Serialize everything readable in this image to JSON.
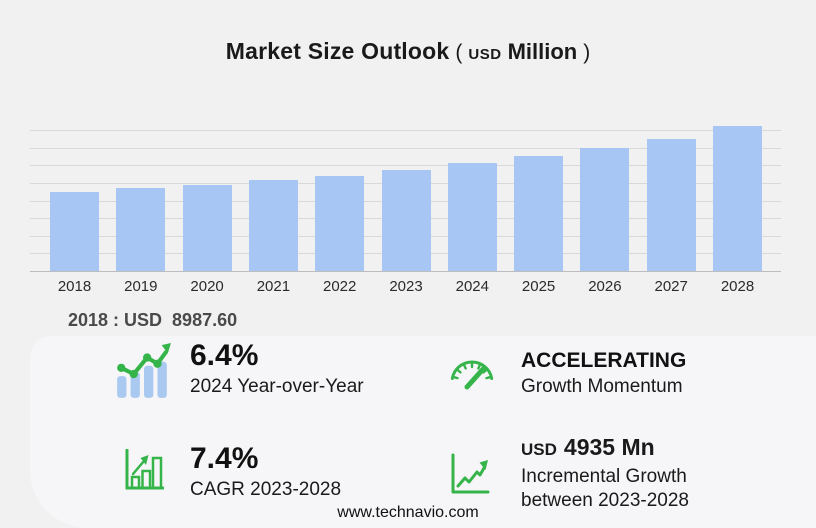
{
  "title": {
    "main": "Market Size Outlook",
    "open_paren": "(",
    "currency": "USD",
    "unit": "Million",
    "close_paren": ")"
  },
  "chart_data": {
    "type": "bar",
    "title": "Market Size Outlook (USD Million)",
    "categories": [
      "2018",
      "2019",
      "2020",
      "2021",
      "2022",
      "2023",
      "2024",
      "2025",
      "2026",
      "2027",
      "2028"
    ],
    "values": [
      8987.6,
      9390,
      9800,
      10300,
      10830,
      11510,
      12250,
      13090,
      13950,
      14990,
      16445
    ],
    "xlabel": "",
    "ylabel": "USD Million",
    "ylim": [
      0,
      16000
    ],
    "gridline_interval": 2000,
    "grid": true,
    "legend": false,
    "bar_color": "#a7c6f3"
  },
  "annotation": {
    "base_value": "2018 : USD  8987.60"
  },
  "stats": {
    "yoy": {
      "icon": "bar-chart-trend-icon",
      "value": "6.4%",
      "label": "2024 Year-over-Year"
    },
    "momentum": {
      "icon": "speedometer-icon",
      "value": "ACCELERATING",
      "label": "Growth Momentum"
    },
    "cagr": {
      "icon": "growth-bars-icon",
      "value": "7.4%",
      "label": "CAGR 2023-2028"
    },
    "incremental": {
      "icon": "trend-axes-icon",
      "currency": "USD",
      "value": "4935 Mn",
      "label_line1": "Incremental Growth",
      "label_line2": "between 2023-2028"
    }
  },
  "footer": {
    "website": "www.technavio.com"
  },
  "colors": {
    "background": "#f1f1f2",
    "panel": "#f6f6f8",
    "bar": "#a7c6f3",
    "gridline": "#d8d8da",
    "axis": "#bdbdbf",
    "accent_green": "#35b44a",
    "icon_blue": "#aac9f0",
    "text": "#1a1a1a",
    "annotation_text": "#4a4a4a"
  }
}
